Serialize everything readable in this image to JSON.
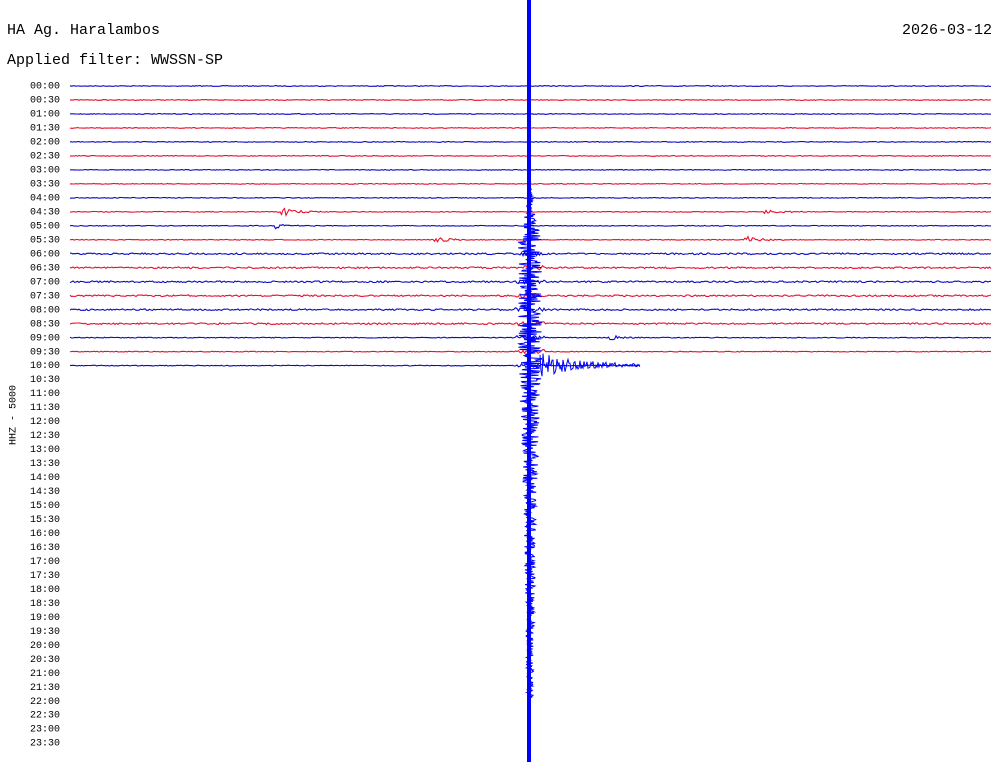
{
  "header": {
    "station": "HA Ag. Haralambos",
    "date": "2026-03-12",
    "filter": "Applied filter: WWSSN-SP"
  },
  "axis_label": "HHZ - 5000",
  "rows": [
    "00:00",
    "00:30",
    "01:00",
    "01:30",
    "02:00",
    "02:30",
    "03:00",
    "03:30",
    "04:00",
    "04:30",
    "05:00",
    "05:30",
    "06:00",
    "06:30",
    "07:00",
    "07:30",
    "08:00",
    "08:30",
    "09:00",
    "09:30",
    "10:00",
    "10:30",
    "11:00",
    "11:30",
    "12:00",
    "12:30",
    "13:00",
    "13:30",
    "14:00",
    "14:30",
    "15:00",
    "15:30",
    "16:00",
    "16:30",
    "17:00",
    "17:30",
    "18:00",
    "18:30",
    "19:00",
    "19:30",
    "20:00",
    "20:30",
    "21:00",
    "21:30",
    "22:00",
    "22:30",
    "23:00",
    "23:30"
  ]
}
